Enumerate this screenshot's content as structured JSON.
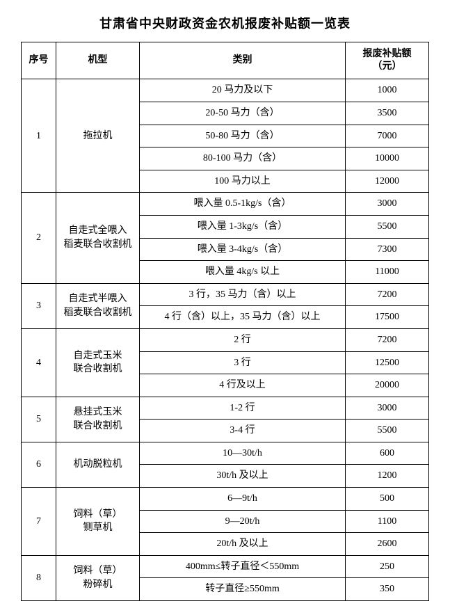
{
  "title": "甘肃省中央财政资金农机报废补贴额一览表",
  "headers": {
    "seq": "序号",
    "model": "机型",
    "category": "类别",
    "amount_line1": "报废补贴额",
    "amount_line2": "（元）"
  },
  "groups": [
    {
      "seq": "1",
      "model": "拖拉机",
      "rows": [
        {
          "cat": "20 马力及以下",
          "amt": "1000"
        },
        {
          "cat": "20-50 马力（含）",
          "amt": "3500"
        },
        {
          "cat": "50-80 马力（含）",
          "amt": "7000"
        },
        {
          "cat": "80-100 马力（含）",
          "amt": "10000"
        },
        {
          "cat": "100 马力以上",
          "amt": "12000"
        }
      ]
    },
    {
      "seq": "2",
      "model": "自走式全喂入\n稻麦联合收割机",
      "rows": [
        {
          "cat": "喂入量 0.5-1kg/s（含）",
          "amt": "3000"
        },
        {
          "cat": "喂入量 1-3kg/s（含）",
          "amt": "5500"
        },
        {
          "cat": "喂入量 3-4kg/s（含）",
          "amt": "7300"
        },
        {
          "cat": "喂入量 4kg/s 以上",
          "amt": "11000"
        }
      ]
    },
    {
      "seq": "3",
      "model": "自走式半喂入\n稻麦联合收割机",
      "rows": [
        {
          "cat": "3 行，35 马力（含）以上",
          "amt": "7200"
        },
        {
          "cat": "4 行（含）以上，35 马力（含）以上",
          "amt": "17500"
        }
      ]
    },
    {
      "seq": "4",
      "model": "自走式玉米\n联合收割机",
      "rows": [
        {
          "cat": "2 行",
          "amt": "7200"
        },
        {
          "cat": "3 行",
          "amt": "12500"
        },
        {
          "cat": "4 行及以上",
          "amt": "20000"
        }
      ]
    },
    {
      "seq": "5",
      "model": "悬挂式玉米\n联合收割机",
      "rows": [
        {
          "cat": "1-2 行",
          "amt": "3000"
        },
        {
          "cat": "3-4 行",
          "amt": "5500"
        }
      ]
    },
    {
      "seq": "6",
      "model": "机动脱粒机",
      "rows": [
        {
          "cat": "10—30t/h",
          "amt": "600"
        },
        {
          "cat": "30t/h 及以上",
          "amt": "1200"
        }
      ]
    },
    {
      "seq": "7",
      "model": "饲料（草）\n铡草机",
      "rows": [
        {
          "cat": "6—9t/h",
          "amt": "500"
        },
        {
          "cat": "9—20t/h",
          "amt": "1100"
        },
        {
          "cat": "20t/h 及以上",
          "amt": "2600"
        }
      ]
    },
    {
      "seq": "8",
      "model": "饲料（草）\n粉碎机",
      "rows": [
        {
          "cat": "400mm≤转子直径＜550mm",
          "amt": "250"
        },
        {
          "cat": "转子直径≥550mm",
          "amt": "350"
        }
      ]
    }
  ]
}
